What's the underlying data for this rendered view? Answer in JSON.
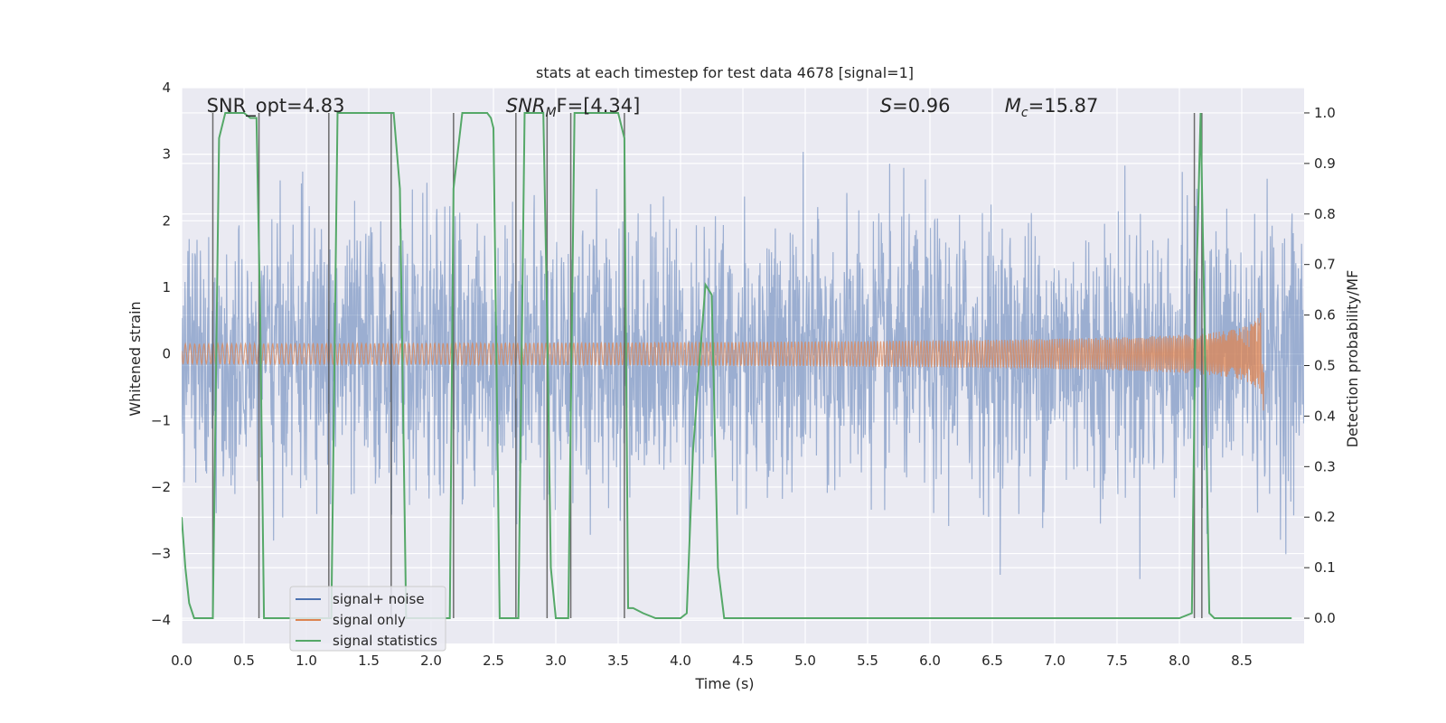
{
  "chart_data": {
    "type": "line",
    "title": "stats at each timestep for test data 4678 [signal=1]",
    "xlabel": "Time (s)",
    "ylabel_left": "Whitened strain",
    "ylabel_right": "Detection probability/MF",
    "xlim": [
      0,
      9.0
    ],
    "ylim_left": [
      -4.35,
      4.0
    ],
    "ylim_right": [
      -0.05,
      1.05
    ],
    "xticks": [
      0.0,
      0.5,
      1.0,
      1.5,
      2.0,
      2.5,
      3.0,
      3.5,
      4.0,
      4.5,
      5.0,
      5.5,
      6.0,
      6.5,
      7.0,
      7.5,
      8.0,
      8.5
    ],
    "xtick_labels": [
      "0.0",
      "0.5",
      "1.0",
      "1.5",
      "2.0",
      "2.5",
      "3.0",
      "3.5",
      "4.0",
      "4.5",
      "5.0",
      "5.5",
      "6.0",
      "6.5",
      "7.0",
      "7.5",
      "8.0",
      "8.5"
    ],
    "yticks_left": [
      4,
      3,
      2,
      1,
      0,
      -1,
      -2,
      -3,
      -4
    ],
    "ytick_labels_left": [
      "4",
      "3",
      "2",
      "1",
      "0",
      "−1",
      "−2",
      "−3",
      "−4"
    ],
    "yticks_right": [
      1.0,
      0.9,
      0.8,
      0.7,
      0.6,
      0.5,
      0.4,
      0.3,
      0.2,
      0.1,
      0.0
    ],
    "ytick_labels_right": [
      "1.0",
      "0.9",
      "0.8",
      "0.7",
      "0.6",
      "0.5",
      "0.4",
      "0.3",
      "0.2",
      "0.1",
      "0.0"
    ],
    "grid": true,
    "background": "#eaeaf2",
    "annotations": [
      {
        "prefix": "SNR_opt=4.83",
        "sub": "",
        "suffix": "",
        "x": 0.2
      },
      {
        "prefix": "SNR",
        "sub": "M",
        "suffix": "F=[4.34]",
        "x": 2.6,
        "italic_prefix": true
      },
      {
        "prefix": "S",
        "sub": "",
        "suffix": "=0.96",
        "x": 5.6,
        "italic_prefix": true
      },
      {
        "prefix": "M",
        "sub": "c",
        "suffix": "=15.87",
        "x": 6.6,
        "italic_prefix": true
      }
    ],
    "legend": {
      "placement": "lower-left",
      "entries": [
        {
          "label": "signal+ noise",
          "color": "#4c72b0"
        },
        {
          "label": "signal only",
          "color": "#dd8452"
        },
        {
          "label": "signal statistics",
          "color": "#55a868"
        }
      ]
    },
    "series": [
      {
        "name": "signal+ noise",
        "axis": "left",
        "color": "#4c72b0",
        "kind": "noise",
        "x_range": [
          0,
          9.0
        ],
        "sample_rate_hz": 300,
        "amplitude_std": 1.0,
        "typical_range": [
          -3.6,
          3.6
        ]
      },
      {
        "name": "signal only",
        "axis": "left",
        "color": "#dd8452",
        "kind": "chirp",
        "x_start": 0,
        "x_end": 8.68,
        "peak_amplitude": 1.05
      },
      {
        "name": "signal statistics",
        "axis": "right",
        "color": "#55a868",
        "x": [
          0.0,
          0.03,
          0.06,
          0.1,
          0.15,
          0.2,
          0.25,
          0.3,
          0.35,
          0.4,
          0.45,
          0.5,
          0.55,
          0.6,
          0.63,
          0.66,
          0.7,
          0.75,
          0.8,
          0.9,
          1.0,
          1.1,
          1.2,
          1.25,
          1.3,
          1.35,
          1.4,
          1.5,
          1.6,
          1.7,
          1.75,
          1.8,
          1.85,
          1.9,
          2.0,
          2.1,
          2.15,
          2.18,
          2.25,
          2.3,
          2.35,
          2.4,
          2.45,
          2.48,
          2.5,
          2.53,
          2.55,
          2.6,
          2.65,
          2.7,
          2.75,
          2.8,
          2.85,
          2.9,
          2.93,
          2.96,
          3.0,
          3.05,
          3.1,
          3.15,
          3.2,
          3.25,
          3.3,
          3.4,
          3.5,
          3.55,
          3.58,
          3.62,
          3.7,
          3.8,
          3.9,
          4.0,
          4.05,
          4.1,
          4.15,
          4.2,
          4.25,
          4.3,
          4.35,
          4.4,
          4.6,
          5.0,
          5.5,
          6.0,
          6.5,
          7.0,
          7.5,
          8.0,
          8.1,
          8.13,
          8.17,
          8.2,
          8.24,
          8.28,
          8.35,
          8.5,
          8.7,
          8.9
        ],
        "y": [
          0.2,
          0.1,
          0.03,
          0.0,
          0.0,
          0.0,
          0.0,
          0.95,
          1.0,
          1.0,
          1.0,
          1.0,
          0.99,
          0.99,
          0.6,
          0.0,
          0.0,
          0.0,
          0.0,
          0.0,
          0.0,
          0.0,
          0.0,
          1.0,
          1.0,
          1.0,
          1.0,
          1.0,
          1.0,
          1.0,
          0.85,
          0.0,
          0.0,
          0.0,
          0.0,
          0.0,
          0.0,
          0.85,
          1.0,
          1.0,
          1.0,
          1.0,
          1.0,
          0.99,
          0.97,
          0.4,
          0.0,
          0.0,
          0.0,
          0.0,
          1.0,
          1.0,
          1.0,
          1.0,
          0.6,
          0.1,
          0.0,
          0.0,
          0.0,
          1.0,
          1.0,
          1.0,
          1.0,
          1.0,
          1.0,
          0.95,
          0.02,
          0.02,
          0.01,
          0.0,
          0.0,
          0.0,
          0.01,
          0.33,
          0.5,
          0.66,
          0.64,
          0.1,
          0.0,
          0.0,
          0.0,
          0.0,
          0.0,
          0.0,
          0.0,
          0.0,
          0.0,
          0.0,
          0.01,
          0.6,
          1.0,
          0.6,
          0.01,
          0.0,
          0.0,
          0.0,
          0.0,
          0.0
        ]
      }
    ],
    "vertical_lines": [
      0.25,
      0.62,
      1.18,
      1.68,
      2.18,
      2.68,
      2.93,
      3.12,
      3.55,
      8.12,
      8.18
    ],
    "vertical_line_color": "#555555"
  }
}
